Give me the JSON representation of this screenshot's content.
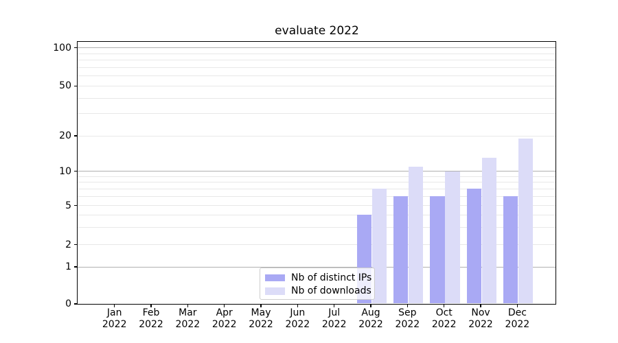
{
  "chart_data": {
    "type": "bar",
    "title": "evaluate 2022",
    "xlabel": "",
    "ylabel": "",
    "categories": [
      {
        "month": "Jan",
        "year": "2022"
      },
      {
        "month": "Feb",
        "year": "2022"
      },
      {
        "month": "Mar",
        "year": "2022"
      },
      {
        "month": "Apr",
        "year": "2022"
      },
      {
        "month": "May",
        "year": "2022"
      },
      {
        "month": "Jun",
        "year": "2022"
      },
      {
        "month": "Jul",
        "year": "2022"
      },
      {
        "month": "Aug",
        "year": "2022"
      },
      {
        "month": "Sep",
        "year": "2022"
      },
      {
        "month": "Oct",
        "year": "2022"
      },
      {
        "month": "Nov",
        "year": "2022"
      },
      {
        "month": "Dec",
        "year": "2022"
      }
    ],
    "series": [
      {
        "name": "Nb of distinct IPs",
        "color": "#a9a9f4",
        "values": [
          0,
          0,
          0,
          0,
          0,
          0,
          0,
          4,
          6,
          6,
          7,
          6
        ]
      },
      {
        "name": "Nb of downloads",
        "color": "#dcdcf8",
        "values": [
          0,
          0,
          0,
          0,
          0,
          0,
          0,
          7,
          11,
          10,
          13,
          19
        ]
      }
    ],
    "y_axis": {
      "scale": "symlog",
      "tick_labels": [
        0,
        1,
        2,
        5,
        10,
        20,
        50,
        100
      ],
      "major_gridlines": [
        1,
        10,
        100
      ],
      "minor_gridlines": [
        2,
        3,
        4,
        5,
        6,
        7,
        8,
        9,
        20,
        30,
        40,
        50,
        60,
        70,
        80,
        90
      ],
      "ylim": [
        0,
        110
      ]
    },
    "legend": {
      "location": "lower center, inside plot"
    },
    "grid": true,
    "colors": {
      "major_grid": "#b0b0b0",
      "minor_grid": "#e8e8e8",
      "spine": "#000000",
      "text": "#000000"
    }
  }
}
